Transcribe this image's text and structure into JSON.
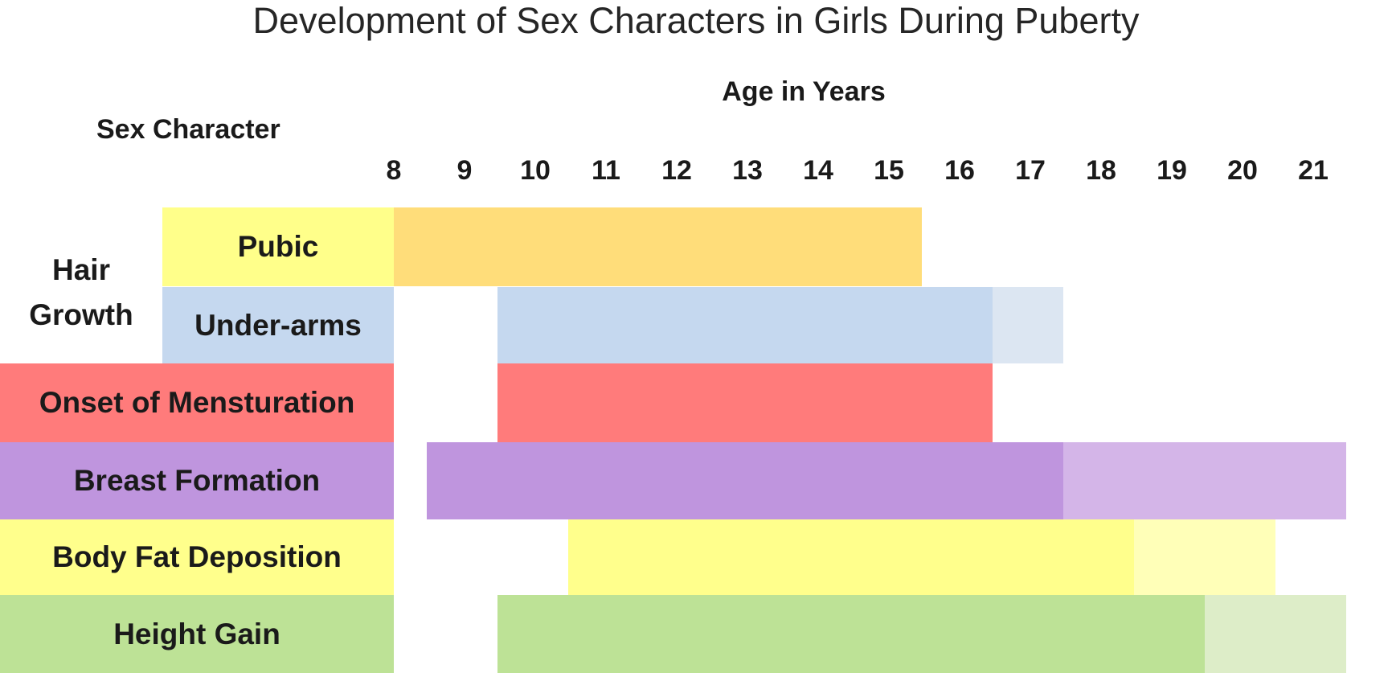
{
  "chart_data": {
    "type": "bar",
    "orientation": "horizontal",
    "subtype": "timeline",
    "title": "Development of Sex Characters  in Girls During Puberty",
    "xlabel": "Age in Years",
    "row_header": "Sex Character",
    "x_ticks": [
      "8",
      "9",
      "10",
      "11",
      "12",
      "13",
      "14",
      "15",
      "16",
      "17",
      "18",
      "19",
      "20",
      "21"
    ],
    "x_range": [
      8,
      21
    ],
    "grid": false,
    "legend": "none",
    "groups": [
      {
        "label_lines": [
          "Hair",
          "Growth"
        ],
        "rows": [
          "Pubic",
          "Under-arms"
        ]
      }
    ],
    "rows": [
      {
        "label": "Pubic",
        "color": "#FFDD7A",
        "label_color": "#FFFF8A",
        "start": 8,
        "end": 15,
        "extended_end": null,
        "extended_color": null
      },
      {
        "label": "Under-arms",
        "color": "#C5D8EF",
        "label_color": "#C5D8EF",
        "start": 10,
        "end": 16,
        "extended_end": 17,
        "extended_color": "#DCE6F2"
      },
      {
        "label": "Onset of Mensturation",
        "color": "#FF7B7B",
        "label_color": "#FF7B7B",
        "start": 10,
        "end": 16,
        "extended_end": null,
        "extended_color": null
      },
      {
        "label": "Breast  Formation",
        "color": "#BF95DE",
        "label_color": "#BF95DE",
        "start": 9,
        "end": 17,
        "extended_end": 21,
        "extended_color": "#D4B5E8"
      },
      {
        "label": "Body Fat Deposition",
        "color": "#FFFF8C",
        "label_color": "#FFFF8C",
        "start": 11,
        "end": 18,
        "extended_end": 20,
        "extended_color": "#FFFFB8"
      },
      {
        "label": "Height Gain",
        "color": "#BDE296",
        "label_color": "#BDE296",
        "start": 10,
        "end": 19,
        "extended_end": 21,
        "extended_color": "#DDEDC8"
      }
    ]
  }
}
